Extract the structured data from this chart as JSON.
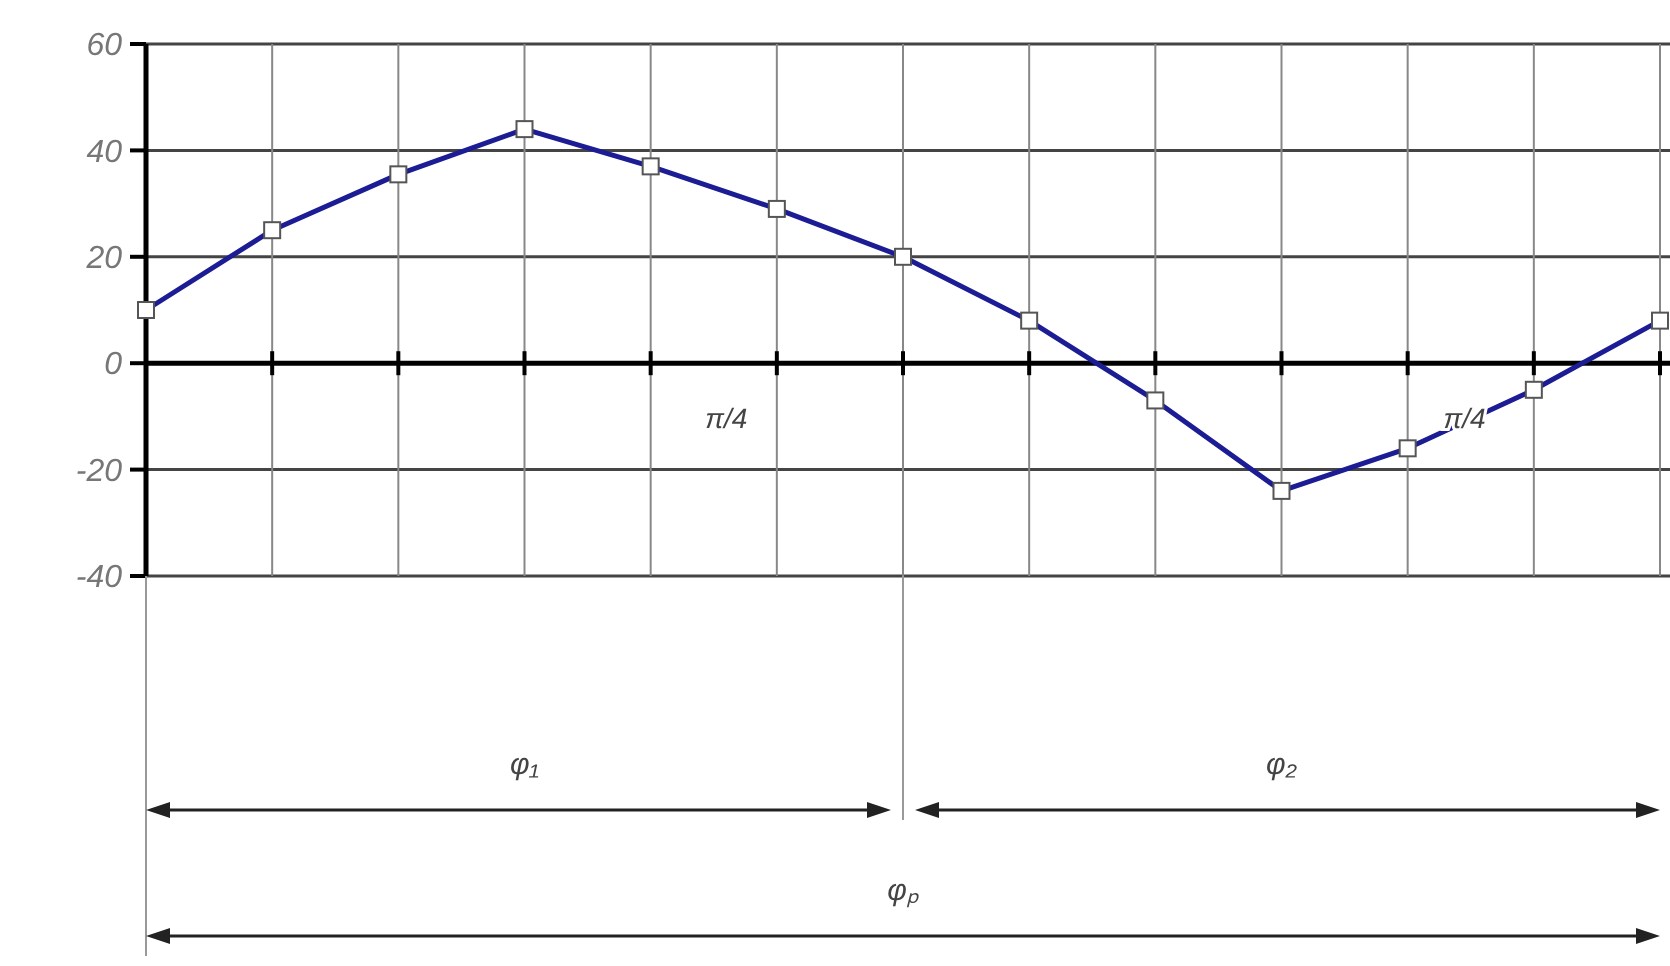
{
  "chart_data": {
    "type": "line",
    "categories": [
      null,
      null,
      null,
      null,
      null,
      null,
      null,
      null,
      null,
      null,
      null,
      null,
      null
    ],
    "series": [
      {
        "color": "#1c1c94",
        "values": [
          10,
          25,
          35.5,
          44,
          37,
          29,
          20,
          8,
          -7,
          -24,
          -16,
          -5,
          8
        ]
      }
    ],
    "ylim": [
      -40,
      60
    ],
    "yticks": [
      -40,
      -20,
      0,
      20,
      40,
      60
    ],
    "grid": true,
    "marker": "square",
    "line_style": "solid",
    "annotations": [
      "π/4",
      "π/4",
      "φ₁",
      "φ₂",
      "φₚ"
    ]
  }
}
